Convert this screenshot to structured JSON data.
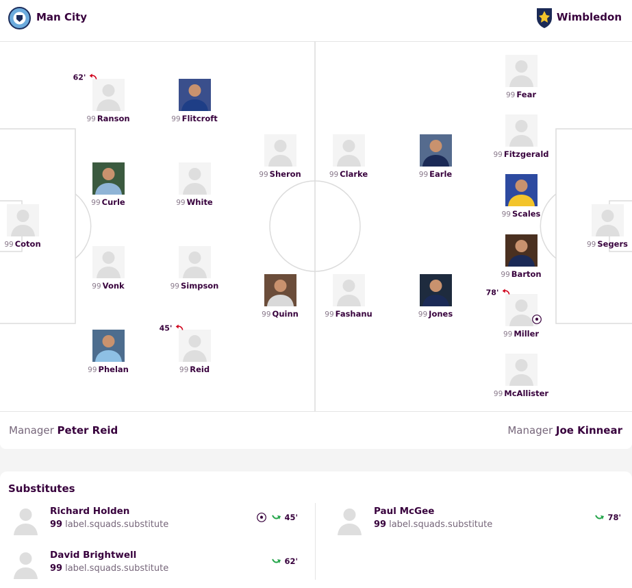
{
  "home": {
    "name": "Man City",
    "manager_label": "Manager",
    "manager": "Peter Reid",
    "players": [
      {
        "number": "99",
        "name": "Ranson",
        "sub_off": "62'"
      },
      {
        "number": "99",
        "name": "Flitcroft"
      },
      {
        "number": "99",
        "name": "Sheron"
      },
      {
        "number": "99",
        "name": "Curle"
      },
      {
        "number": "99",
        "name": "White"
      },
      {
        "number": "99",
        "name": "Coton"
      },
      {
        "number": "99",
        "name": "Vonk"
      },
      {
        "number": "99",
        "name": "Simpson"
      },
      {
        "number": "99",
        "name": "Quinn"
      },
      {
        "number": "99",
        "name": "Phelan"
      },
      {
        "number": "99",
        "name": "Reid",
        "sub_off": "45'"
      }
    ]
  },
  "away": {
    "name": "Wimbledon",
    "manager_label": "Manager",
    "manager": "Joe Kinnear",
    "players": [
      {
        "number": "99",
        "name": "Fear"
      },
      {
        "number": "99",
        "name": "Fitzgerald"
      },
      {
        "number": "99",
        "name": "Scales"
      },
      {
        "number": "99",
        "name": "Barton"
      },
      {
        "number": "99",
        "name": "Miller",
        "sub_off": "78'",
        "goal": true
      },
      {
        "number": "99",
        "name": "McAllister"
      },
      {
        "number": "99",
        "name": "Clarke"
      },
      {
        "number": "99",
        "name": "Earle"
      },
      {
        "number": "99",
        "name": "Fashanu"
      },
      {
        "number": "99",
        "name": "Jones"
      },
      {
        "number": "99",
        "name": "Segers"
      }
    ]
  },
  "substitutes": {
    "title": "Substitutes",
    "home": [
      {
        "name": "Richard Holden",
        "number": "99",
        "role": "label.squads.substitute",
        "sub_on": "45'",
        "goal": true
      },
      {
        "name": "David Brightwell",
        "number": "99",
        "role": "label.squads.substitute",
        "sub_on": "62'"
      }
    ],
    "away": [
      {
        "name": "Paul McGee",
        "number": "99",
        "role": "label.squads.substitute",
        "sub_on": "78'"
      }
    ]
  }
}
